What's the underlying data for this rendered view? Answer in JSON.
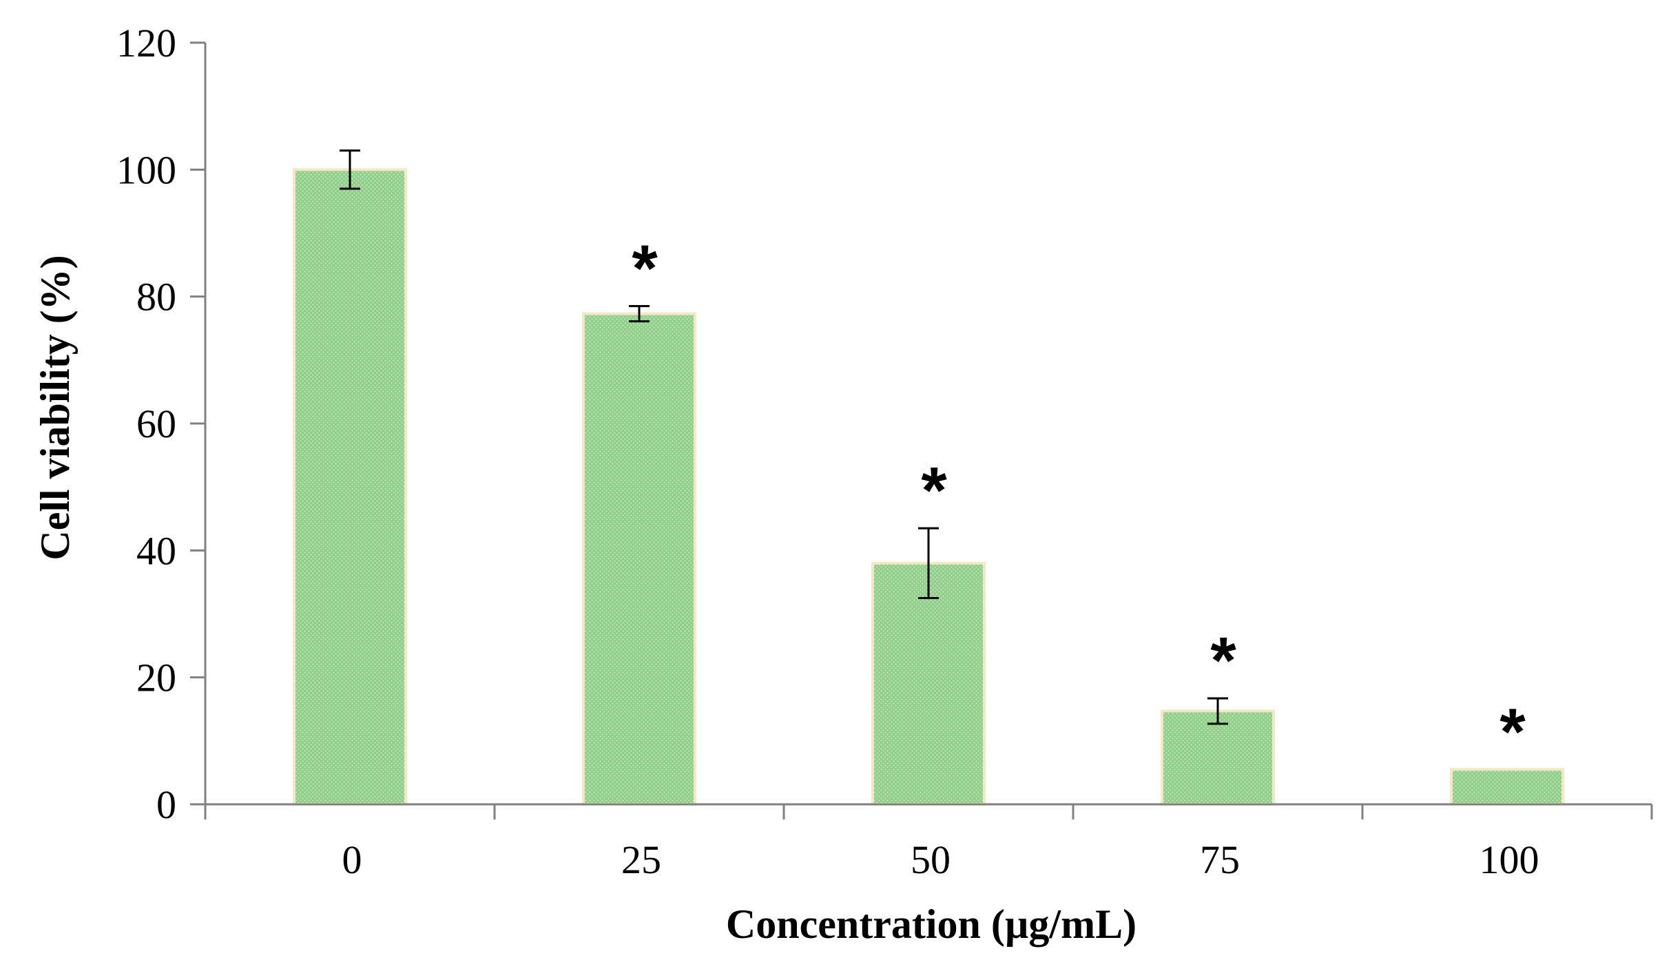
{
  "chart_data": {
    "type": "bar",
    "title": "",
    "xlabel": "Concentration (µg/mL)",
    "ylabel": "Cell viability (%)",
    "categories": [
      "0",
      "25",
      "50",
      "75",
      "100"
    ],
    "values": [
      100,
      77.3,
      38,
      14.7,
      5.5
    ],
    "error": [
      3,
      1.2,
      5.5,
      2,
      0
    ],
    "significance": [
      "",
      "*",
      "*",
      "*",
      "*"
    ],
    "ylim": [
      0,
      120
    ],
    "yticks": [
      "0",
      "20",
      "40",
      "60",
      "80",
      "100",
      "120"
    ],
    "grid": false,
    "legend": "none",
    "bar_color": "#9fd59a",
    "bar_edge_color": "#f3e7c4",
    "error_bar_color": "#000000"
  }
}
